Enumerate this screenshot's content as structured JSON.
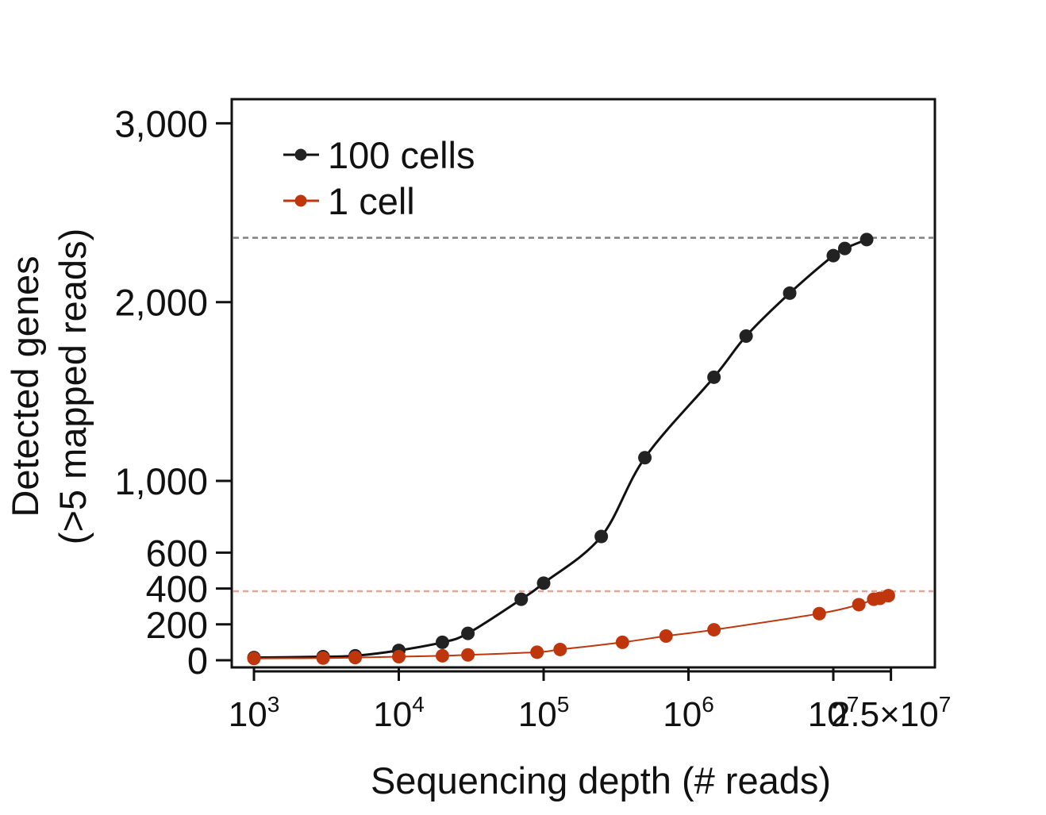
{
  "chart_data": {
    "type": "line",
    "xlabel": "Sequencing depth (# reads)",
    "ylabel_line1": "Detected genes",
    "ylabel_line2": "(>5 mapped reads)",
    "x_scale": "log",
    "x_range": [
      1000,
      25000000
    ],
    "x_ticks": [
      {
        "value": 1000,
        "base": "10",
        "exp": "3",
        "mult": ""
      },
      {
        "value": 10000,
        "base": "10",
        "exp": "4",
        "mult": ""
      },
      {
        "value": 100000,
        "base": "10",
        "exp": "5",
        "mult": ""
      },
      {
        "value": 1000000,
        "base": "10",
        "exp": "6",
        "mult": ""
      },
      {
        "value": 10000000,
        "base": "10",
        "exp": "7",
        "mult": ""
      },
      {
        "value": 25000000,
        "base": "10",
        "exp": "7",
        "mult": "2.5×"
      }
    ],
    "y_scale": "piecewise-linear (0–1,000 compressed, 1,000–3,000 expanded)",
    "y_range": [
      0,
      3000
    ],
    "y_ticks": [
      {
        "value": 0,
        "label": "0"
      },
      {
        "value": 200,
        "label": "200"
      },
      {
        "value": 400,
        "label": "400"
      },
      {
        "value": 600,
        "label": "600"
      },
      {
        "value": 1000,
        "label": "1,000"
      },
      {
        "value": 2000,
        "label": "2,000"
      },
      {
        "value": 3000,
        "label": "3,000"
      }
    ],
    "legend_position": "top-left",
    "reference_lines": [
      {
        "y": 2360,
        "color": "#808080"
      },
      {
        "y": 385,
        "color": "#d9a79e"
      }
    ],
    "series": [
      {
        "name": "100 cells",
        "color": "#111111",
        "marker_color": "#222222",
        "line_width": 3,
        "x": [
          1000,
          3000,
          5000,
          10000,
          20000,
          30000,
          70000,
          100000,
          250000,
          500000,
          1500000,
          2500000,
          5000000,
          10000000,
          12000000,
          17000000
        ],
        "y": [
          15,
          20,
          25,
          55,
          100,
          150,
          340,
          430,
          690,
          1130,
          1580,
          1810,
          2050,
          2260,
          2300,
          2350
        ]
      },
      {
        "name": "1 cell",
        "color": "#c0360c",
        "marker_color": "#c0360c",
        "line_width": 2,
        "x": [
          1000,
          3000,
          5000,
          10000,
          20000,
          30000,
          90000,
          130000,
          350000,
          700000,
          1500000,
          8000000,
          15000000,
          19000000,
          21000000,
          24000000
        ],
        "y": [
          10,
          12,
          15,
          20,
          25,
          30,
          45,
          60,
          100,
          135,
          170,
          260,
          310,
          340,
          345,
          360
        ]
      }
    ]
  }
}
